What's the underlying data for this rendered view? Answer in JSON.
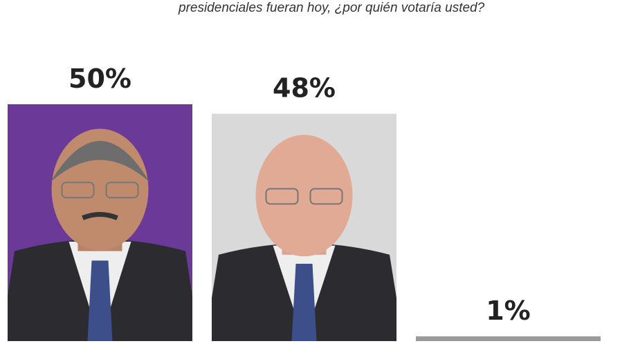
{
  "chart_data": {
    "type": "bar",
    "title": "presidenciales fueran hoy, ¿por quién votaría usted?",
    "categories": [
      "",
      "",
      ""
    ],
    "values": [
      50,
      48,
      1
    ],
    "value_labels": [
      "50%",
      "48%",
      "1%"
    ],
    "bar_colors": [
      "#6b3a98",
      "#d9d9d9",
      "#9a9a9a"
    ],
    "bar_images": [
      "man-portrait-photo",
      "man-portrait-photo",
      ""
    ],
    "ylim": [
      0,
      50
    ],
    "grid": false,
    "xlabel": "",
    "ylabel": ""
  }
}
